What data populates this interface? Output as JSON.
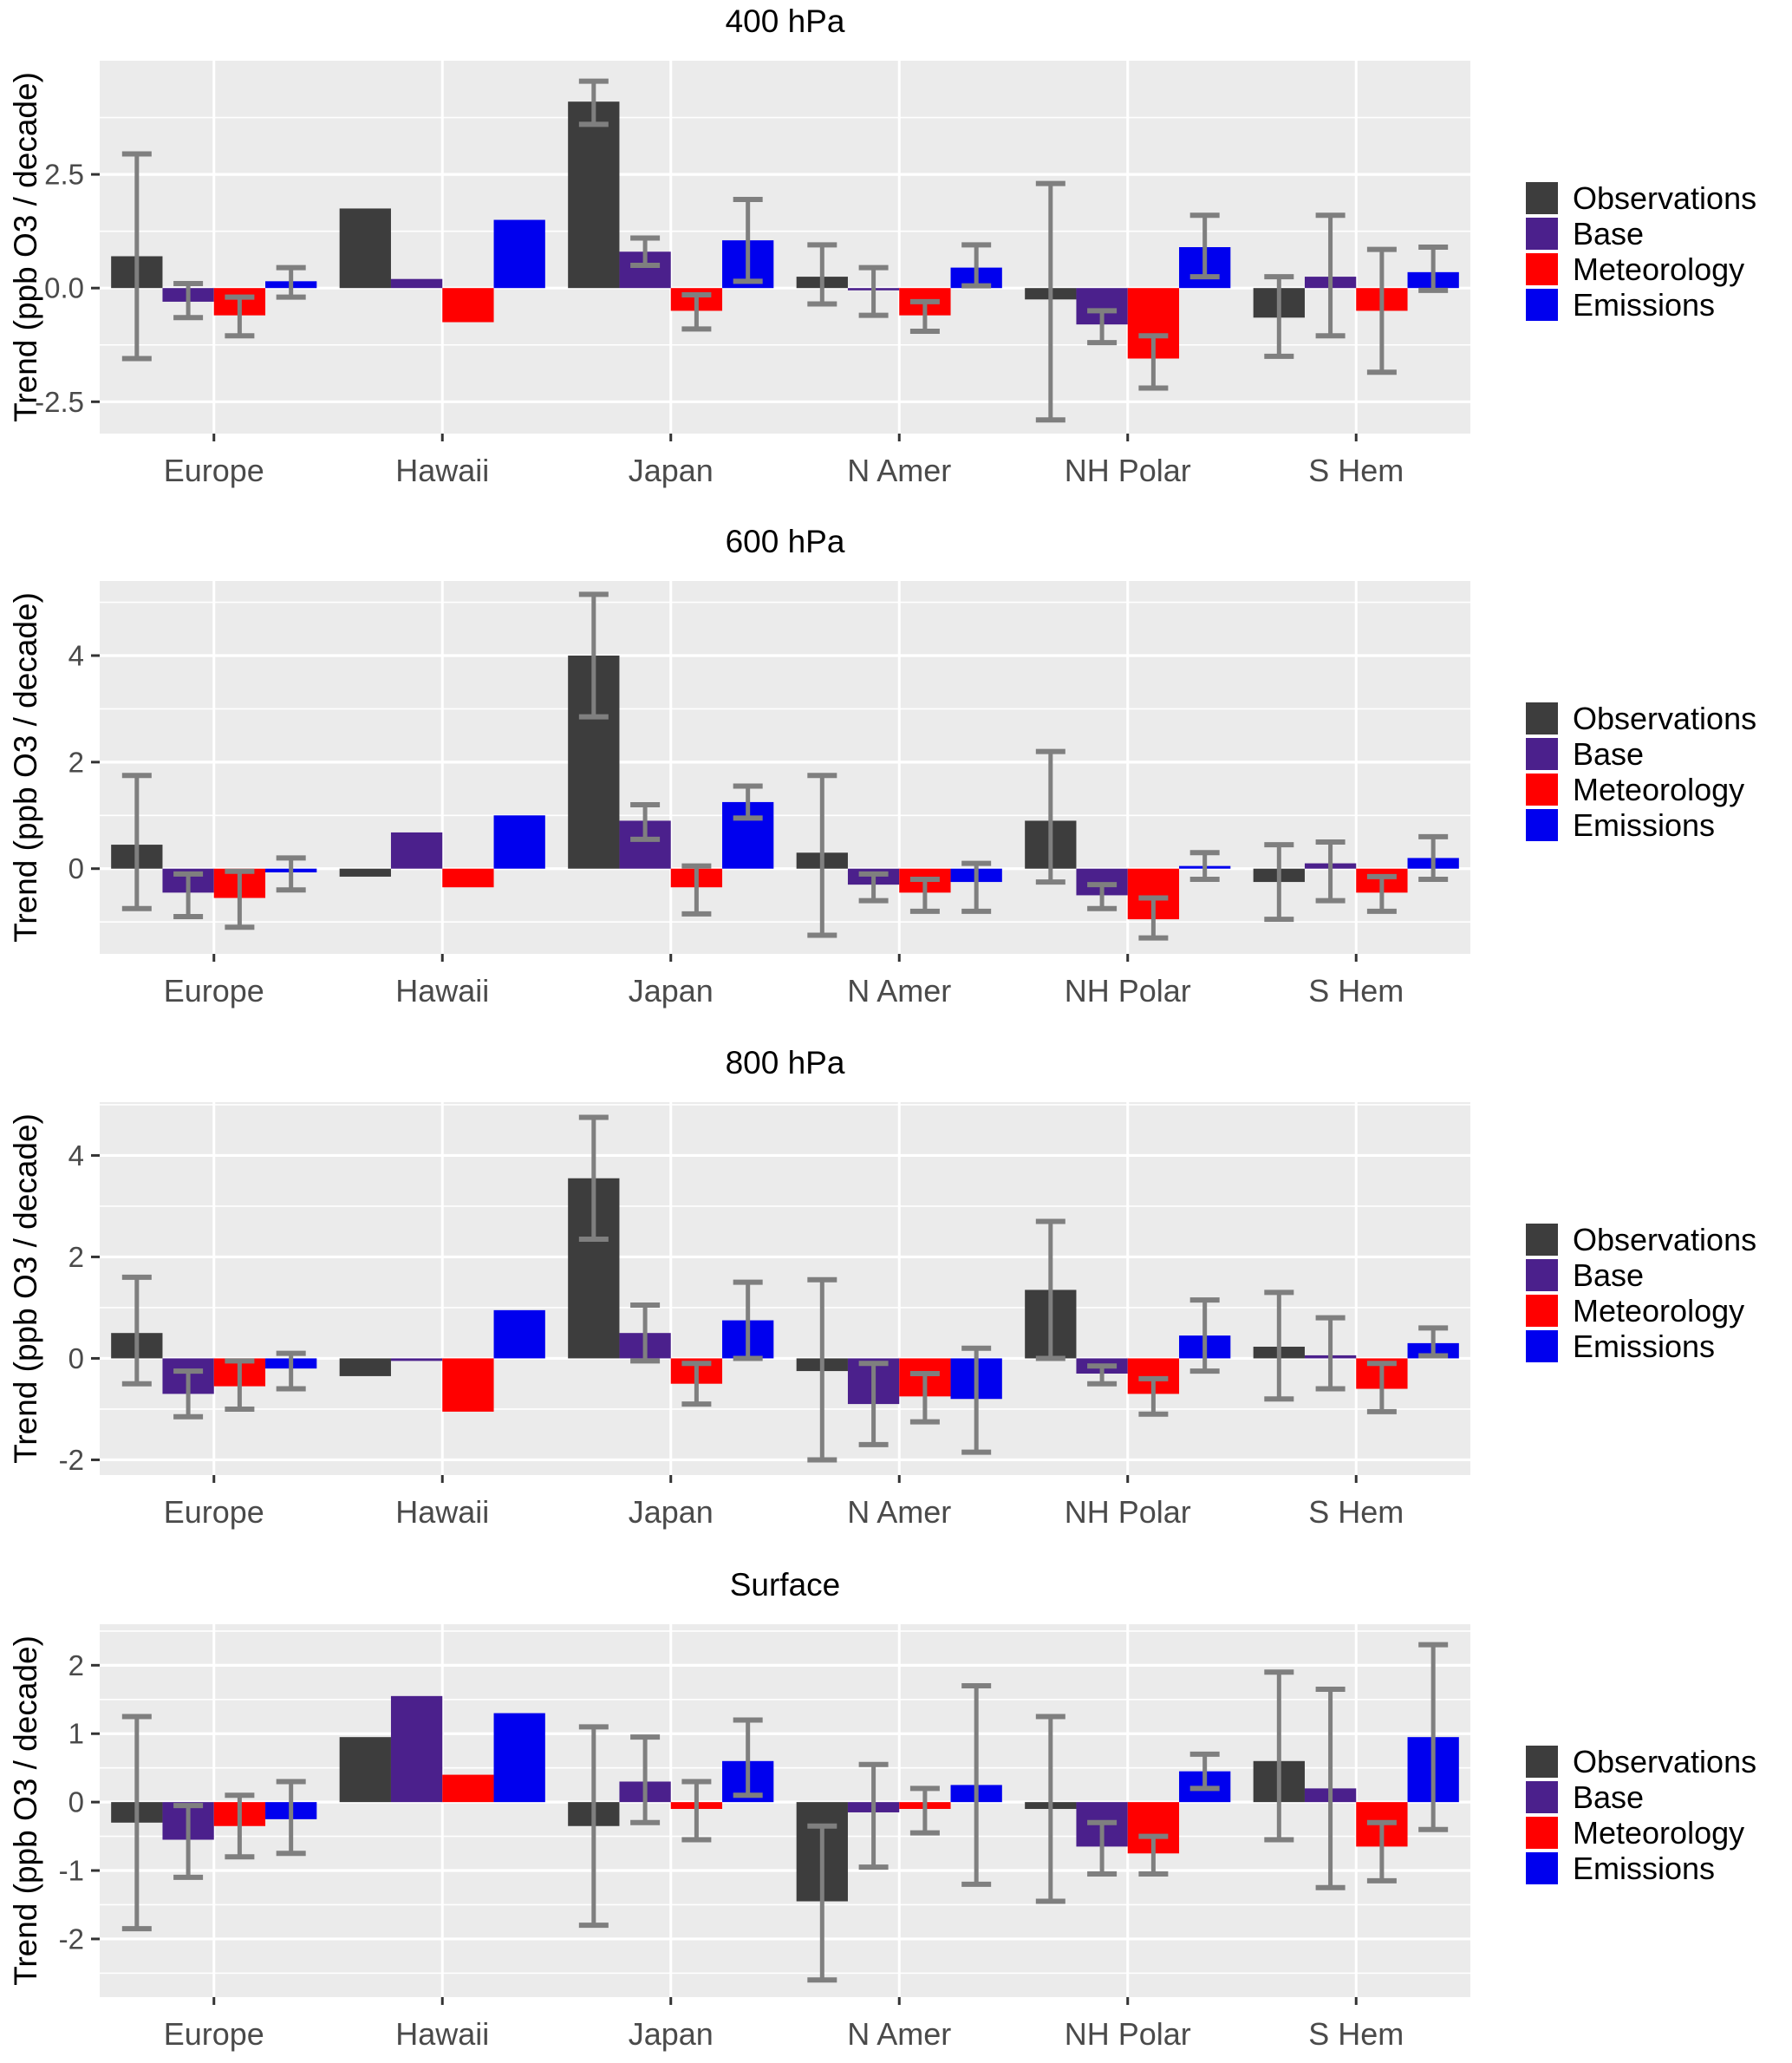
{
  "figure": {
    "y_axis_title": "Trend (ppb O3 / decade)",
    "categories": [
      "Europe",
      "Hawaii",
      "Japan",
      "N Amer",
      "NH Polar",
      "S Hem"
    ],
    "panel_background": "#EBEBEB",
    "gridline_color": "#FFFFFF",
    "error_bar_color": "#7F7F7F",
    "axis_text_color": "#4A4A4A",
    "tick_mark_color": "#333333"
  },
  "legend": {
    "items": [
      {
        "label": "Observations",
        "color": "#3D3D3D"
      },
      {
        "label": "Base",
        "color": "#4B208C"
      },
      {
        "label": "Meteorology",
        "color": "#FF0000"
      },
      {
        "label": "Emissions",
        "color": "#0000EE"
      }
    ]
  },
  "chart_data": [
    {
      "type": "bar",
      "title": "400 hPa",
      "xlabel": "",
      "ylabel": "Trend (ppb O3 / decade)",
      "categories": [
        "Europe",
        "Hawaii",
        "Japan",
        "N Amer",
        "NH Polar",
        "S Hem"
      ],
      "ylim": [
        -3.2,
        5.0
      ],
      "yticks": [
        {
          "value": 2.5,
          "label": "2.5"
        },
        {
          "value": 0,
          "label": "0.0"
        },
        {
          "value": -2.5,
          "label": "-2.5"
        }
      ],
      "yticks_minor": [
        3.75,
        1.25,
        -1.25
      ],
      "grid": true,
      "legend_position": "right",
      "series": [
        {
          "name": "Observations",
          "values": [
            0.7,
            1.75,
            4.1,
            0.25,
            -0.25,
            -0.65
          ],
          "err_low": [
            -1.55,
            null,
            3.6,
            -0.35,
            -2.9,
            -1.5
          ],
          "err_high": [
            2.95,
            null,
            4.55,
            0.95,
            2.3,
            0.25
          ]
        },
        {
          "name": "Base",
          "values": [
            -0.3,
            0.2,
            0.8,
            -0.05,
            -0.8,
            0.25
          ],
          "err_low": [
            -0.65,
            null,
            0.5,
            -0.6,
            -1.2,
            -1.05
          ],
          "err_high": [
            0.1,
            null,
            1.1,
            0.45,
            -0.5,
            1.6
          ]
        },
        {
          "name": "Meteorology",
          "values": [
            -0.6,
            -0.75,
            -0.5,
            -0.6,
            -1.55,
            -0.5
          ],
          "err_low": [
            -1.05,
            null,
            -0.9,
            -0.95,
            -2.2,
            -1.85
          ],
          "err_high": [
            -0.2,
            null,
            -0.15,
            -0.3,
            -1.05,
            0.85
          ]
        },
        {
          "name": "Emissions",
          "values": [
            0.15,
            1.5,
            1.05,
            0.45,
            0.9,
            0.35
          ],
          "err_low": [
            -0.2,
            null,
            0.15,
            0.05,
            0.25,
            -0.05
          ],
          "err_high": [
            0.45,
            null,
            1.95,
            0.95,
            1.6,
            0.9
          ]
        }
      ]
    },
    {
      "type": "bar",
      "title": "600 hPa",
      "xlabel": "",
      "ylabel": "Trend (ppb O3 / decade)",
      "categories": [
        "Europe",
        "Hawaii",
        "Japan",
        "N Amer",
        "NH Polar",
        "S Hem"
      ],
      "ylim": [
        -1.6,
        5.4
      ],
      "yticks": [
        {
          "value": 4,
          "label": "4"
        },
        {
          "value": 2,
          "label": "2"
        },
        {
          "value": 0,
          "label": "0"
        }
      ],
      "yticks_minor": [
        5,
        3,
        1,
        -1
      ],
      "grid": true,
      "legend_position": "right",
      "series": [
        {
          "name": "Observations",
          "values": [
            0.45,
            -0.15,
            4.0,
            0.3,
            0.9,
            -0.25
          ],
          "err_low": [
            -0.75,
            null,
            2.85,
            -1.25,
            -0.25,
            -0.95
          ],
          "err_high": [
            1.75,
            null,
            5.15,
            1.75,
            2.2,
            0.45
          ]
        },
        {
          "name": "Base",
          "values": [
            -0.45,
            0.68,
            0.9,
            -0.3,
            -0.5,
            0.1
          ],
          "err_low": [
            -0.9,
            null,
            0.55,
            -0.6,
            -0.75,
            -0.6
          ],
          "err_high": [
            -0.1,
            null,
            1.2,
            -0.1,
            -0.3,
            0.5
          ]
        },
        {
          "name": "Meteorology",
          "values": [
            -0.55,
            -0.35,
            -0.35,
            -0.45,
            -0.95,
            -0.45
          ],
          "err_low": [
            -1.1,
            null,
            -0.85,
            -0.8,
            -1.3,
            -0.8
          ],
          "err_high": [
            -0.05,
            null,
            0.05,
            -0.2,
            -0.55,
            -0.15
          ]
        },
        {
          "name": "Emissions",
          "values": [
            -0.07,
            1.0,
            1.25,
            -0.25,
            0.05,
            0.2
          ],
          "err_low": [
            -0.4,
            null,
            0.95,
            -0.8,
            -0.2,
            -0.2
          ],
          "err_high": [
            0.2,
            null,
            1.55,
            0.1,
            0.3,
            0.6
          ]
        }
      ]
    },
    {
      "type": "bar",
      "title": "800 hPa",
      "xlabel": "",
      "ylabel": "Trend (ppb O3 / decade)",
      "categories": [
        "Europe",
        "Hawaii",
        "Japan",
        "N Amer",
        "NH Polar",
        "S Hem"
      ],
      "ylim": [
        -2.3,
        5.05
      ],
      "yticks": [
        {
          "value": 4,
          "label": "4"
        },
        {
          "value": 2,
          "label": "2"
        },
        {
          "value": 0,
          "label": "0"
        },
        {
          "value": -2,
          "label": "-2"
        }
      ],
      "yticks_minor": [
        5,
        3,
        1,
        -1
      ],
      "grid": true,
      "legend_position": "right",
      "series": [
        {
          "name": "Observations",
          "values": [
            0.5,
            -0.35,
            3.55,
            -0.25,
            1.35,
            0.23
          ],
          "err_low": [
            -0.5,
            null,
            2.35,
            -2.0,
            0.0,
            -0.8
          ],
          "err_high": [
            1.6,
            null,
            4.75,
            1.55,
            2.7,
            1.3
          ]
        },
        {
          "name": "Base",
          "values": [
            -0.7,
            -0.05,
            0.5,
            -0.9,
            -0.3,
            0.06
          ],
          "err_low": [
            -1.15,
            null,
            -0.05,
            -1.7,
            -0.5,
            -0.6
          ],
          "err_high": [
            -0.25,
            null,
            1.05,
            -0.1,
            -0.15,
            0.8
          ]
        },
        {
          "name": "Meteorology",
          "values": [
            -0.55,
            -1.05,
            -0.5,
            -0.75,
            -0.7,
            -0.6
          ],
          "err_low": [
            -1.0,
            null,
            -0.9,
            -1.25,
            -1.1,
            -1.05
          ],
          "err_high": [
            -0.05,
            null,
            -0.1,
            -0.3,
            -0.4,
            -0.1
          ]
        },
        {
          "name": "Emissions",
          "values": [
            -0.2,
            0.95,
            0.75,
            -0.8,
            0.45,
            0.3
          ],
          "err_low": [
            -0.6,
            null,
            0.0,
            -1.85,
            -0.25,
            0.05
          ],
          "err_high": [
            0.1,
            null,
            1.5,
            0.2,
            1.15,
            0.6
          ]
        }
      ]
    },
    {
      "type": "bar",
      "title": "Surface",
      "xlabel": "",
      "ylabel": "Trend (ppb O3 / decade)",
      "categories": [
        "Europe",
        "Hawaii",
        "Japan",
        "N Amer",
        "NH Polar",
        "S Hem"
      ],
      "ylim": [
        -2.85,
        2.6
      ],
      "yticks": [
        {
          "value": 2,
          "label": "2"
        },
        {
          "value": 1,
          "label": "1"
        },
        {
          "value": 0,
          "label": "0"
        },
        {
          "value": -1,
          "label": "-1"
        },
        {
          "value": -2,
          "label": "-2"
        }
      ],
      "yticks_minor": [
        2.5,
        1.5,
        0.5,
        -0.5,
        -1.5,
        -2.5
      ],
      "grid": true,
      "legend_position": "right",
      "series": [
        {
          "name": "Observations",
          "values": [
            -0.3,
            0.95,
            -0.35,
            -1.45,
            -0.1,
            0.6
          ],
          "err_low": [
            -1.85,
            null,
            -1.8,
            -2.6,
            -1.45,
            -0.55
          ],
          "err_high": [
            1.25,
            null,
            1.1,
            -0.35,
            1.25,
            1.9
          ]
        },
        {
          "name": "Base",
          "values": [
            -0.55,
            1.55,
            0.3,
            -0.15,
            -0.65,
            0.2
          ],
          "err_low": [
            -1.1,
            null,
            -0.3,
            -0.95,
            -1.05,
            -1.25
          ],
          "err_high": [
            -0.05,
            null,
            0.95,
            0.55,
            -0.3,
            1.65
          ]
        },
        {
          "name": "Meteorology",
          "values": [
            -0.35,
            0.4,
            -0.1,
            -0.1,
            -0.75,
            -0.65
          ],
          "err_low": [
            -0.8,
            null,
            -0.55,
            -0.45,
            -1.05,
            -1.15
          ],
          "err_high": [
            0.1,
            null,
            0.3,
            0.2,
            -0.5,
            -0.3
          ]
        },
        {
          "name": "Emissions",
          "values": [
            -0.25,
            1.3,
            0.6,
            0.25,
            0.45,
            0.95
          ],
          "err_low": [
            -0.75,
            null,
            0.1,
            -1.2,
            0.2,
            -0.4
          ],
          "err_high": [
            0.3,
            null,
            1.2,
            1.7,
            0.7,
            2.3
          ]
        }
      ]
    }
  ]
}
